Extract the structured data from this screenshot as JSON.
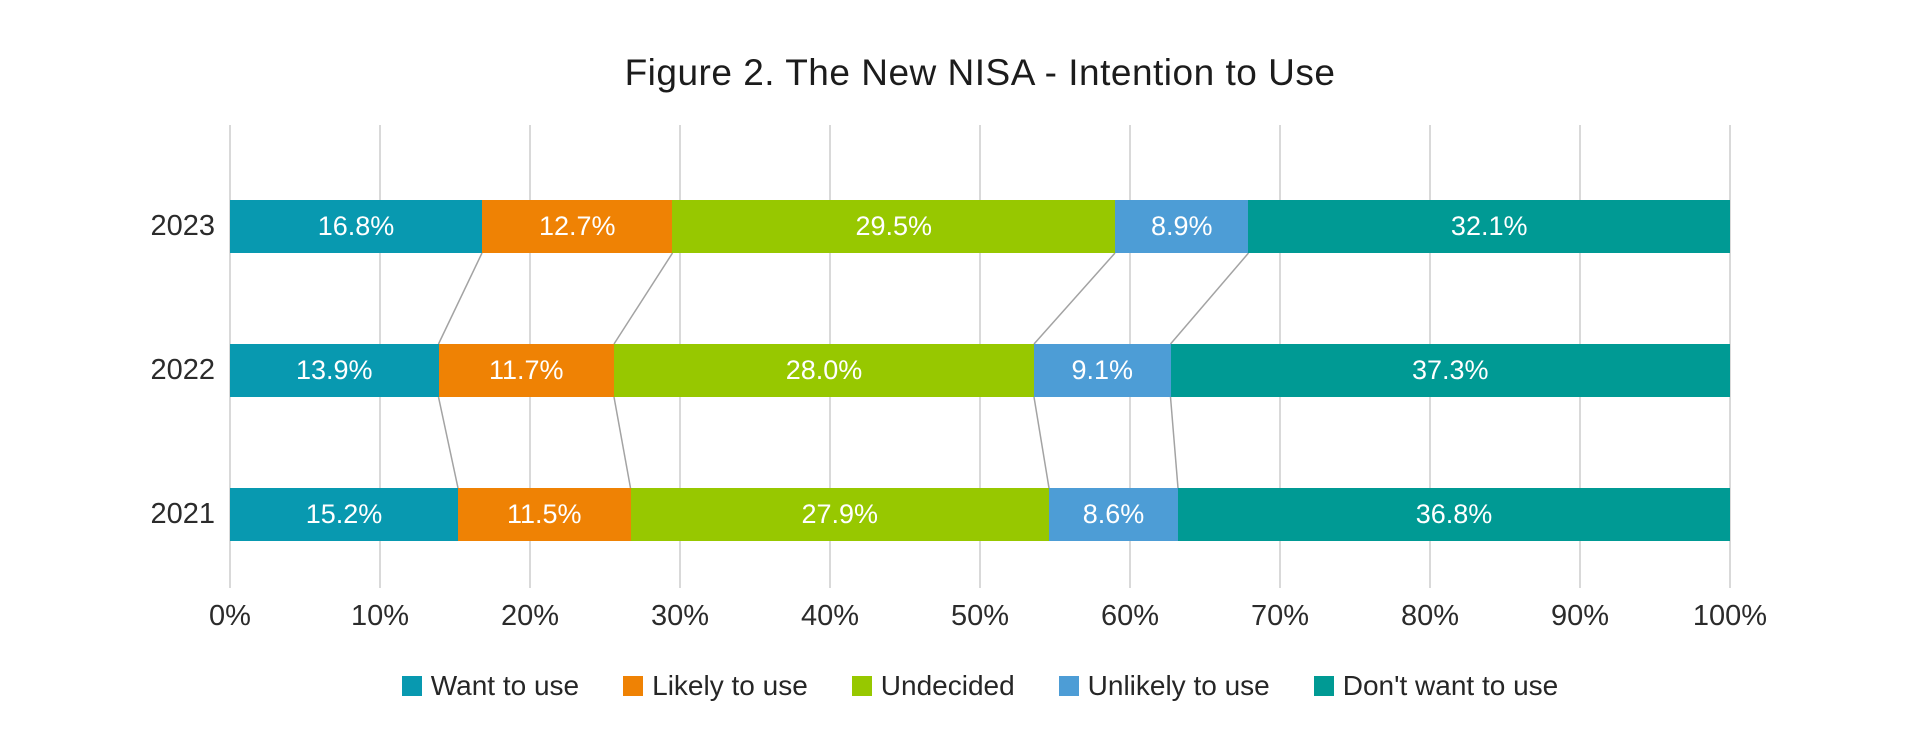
{
  "title": "Figure 2. The New NISA - Intention to Use",
  "chart_data": {
    "type": "bar",
    "orientation": "horizontal",
    "stacked": true,
    "title": "Figure 2. The New NISA - Intention to Use",
    "categories": [
      "2023",
      "2022",
      "2021"
    ],
    "series": [
      {
        "name": "Want to use",
        "color": "#0899B0",
        "values": [
          16.8,
          13.9,
          15.2
        ]
      },
      {
        "name": "Likely to use",
        "color": "#EF8204",
        "values": [
          12.7,
          11.7,
          11.5
        ]
      },
      {
        "name": "Undecided",
        "color": "#97C800",
        "values": [
          29.5,
          28.0,
          27.9
        ]
      },
      {
        "name": "Unlikely to use",
        "color": "#4D9DD6",
        "values": [
          8.9,
          9.1,
          8.6
        ]
      },
      {
        "name": "Don't want to use",
        "color": "#009A94",
        "values": [
          32.1,
          37.3,
          36.8
        ]
      }
    ],
    "value_label_format": "one-decimal-percent",
    "x_ticks": [
      "0%",
      "10%",
      "20%",
      "30%",
      "40%",
      "50%",
      "60%",
      "70%",
      "80%",
      "90%",
      "100%"
    ],
    "xlim": [
      0,
      100
    ],
    "grid": true,
    "legend_position": "bottom",
    "connector_lines": true
  }
}
